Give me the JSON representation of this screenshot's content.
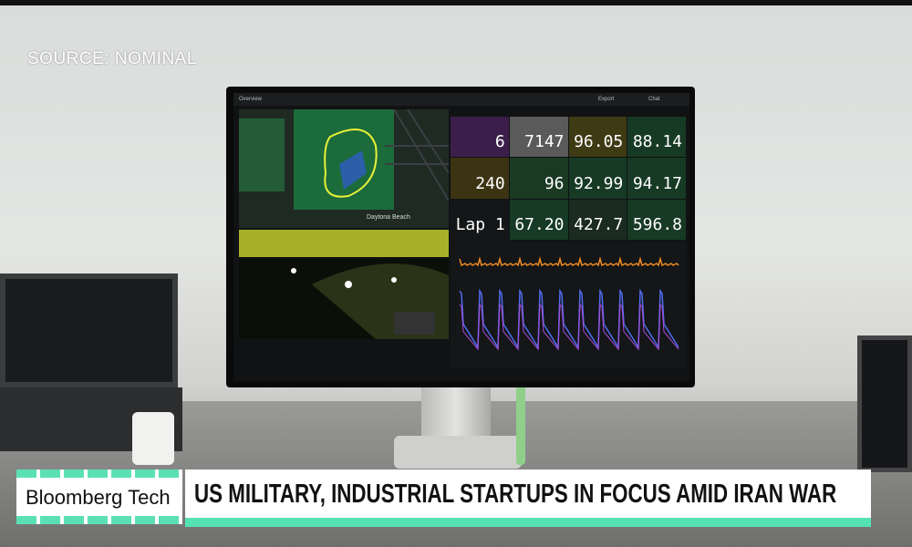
{
  "source": "SOURCE: NOMINAL",
  "monitor": {
    "toolbar": {
      "tab": "Overview",
      "export": "Export",
      "chat": "Chat"
    },
    "map": {
      "place": "Daytona Beach"
    },
    "values": [
      [
        "6",
        "7147",
        "96.05",
        "88.14"
      ],
      [
        "240",
        "96",
        "92.99",
        "94.17"
      ],
      [
        "Lap 1",
        "67.20",
        "427.7",
        "596.8"
      ]
    ]
  },
  "lower_third": {
    "brand": "Bloomberg Tech",
    "headline": "US MILITARY, INDUSTRIAL STARTUPS IN FOCUS AMID IRAN WAR"
  }
}
